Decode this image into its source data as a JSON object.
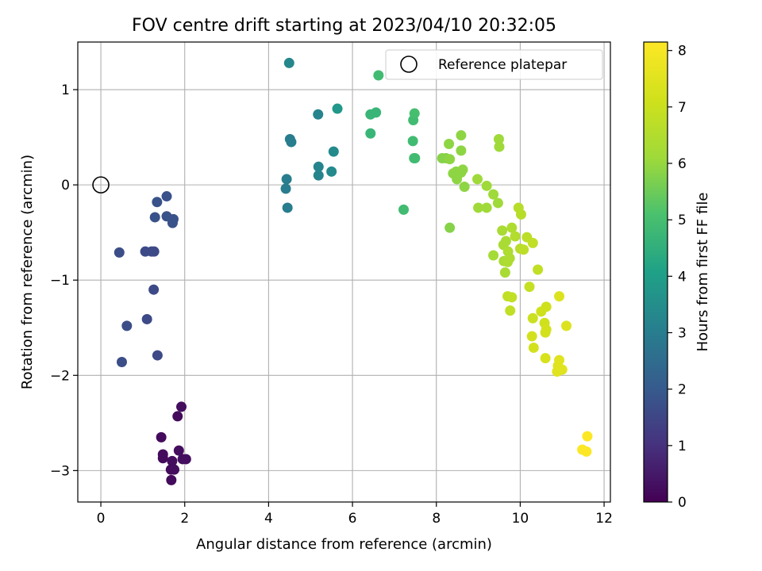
{
  "chart_data": {
    "type": "scatter",
    "title": "FOV centre drift starting at 2023/04/10 20:32:05",
    "xlabel": "Angular distance from reference (arcmin)",
    "ylabel": "Rotation from reference (arcmin)",
    "xlim": [
      -0.55,
      12.15
    ],
    "ylim": [
      -3.33,
      1.5
    ],
    "xticks": [
      0,
      2,
      4,
      6,
      8,
      10,
      12
    ],
    "yticks": [
      -3,
      -2,
      -1,
      0,
      1
    ],
    "xtick_labels": [
      "0",
      "2",
      "4",
      "6",
      "8",
      "10",
      "12"
    ],
    "ytick_labels": [
      "−3",
      "−2",
      "−1",
      "0",
      "1"
    ],
    "grid": true,
    "colormap": "viridis",
    "colorbar": {
      "label": "Hours from first FF file",
      "range": [
        0,
        8.15
      ],
      "ticks": [
        0,
        1,
        2,
        3,
        4,
        5,
        6,
        7,
        8
      ],
      "tick_labels": [
        "0",
        "1",
        "2",
        "3",
        "4",
        "5",
        "6",
        "7",
        "8"
      ]
    },
    "legend": {
      "position": "top-right",
      "entries": [
        "Reference platepar"
      ]
    },
    "reference_point": {
      "x": 0,
      "y": 0
    },
    "series": [
      {
        "x": 1.44,
        "y": -2.65,
        "c": 0.2
      },
      {
        "x": 1.83,
        "y": -2.43,
        "c": 0.2
      },
      {
        "x": 1.92,
        "y": -2.33,
        "c": 0.25
      },
      {
        "x": 1.48,
        "y": -2.83,
        "c": 0.2
      },
      {
        "x": 1.48,
        "y": -2.87,
        "c": 0.2
      },
      {
        "x": 1.7,
        "y": -2.9,
        "c": 0.25
      },
      {
        "x": 1.86,
        "y": -2.79,
        "c": 0.25
      },
      {
        "x": 1.95,
        "y": -2.88,
        "c": 0.3
      },
      {
        "x": 2.03,
        "y": -2.88,
        "c": 0.3
      },
      {
        "x": 1.67,
        "y": -2.99,
        "c": 0.2
      },
      {
        "x": 1.75,
        "y": -2.99,
        "c": 0.25
      },
      {
        "x": 1.68,
        "y": -3.1,
        "c": 0.2
      },
      {
        "x": 0.44,
        "y": -0.71,
        "c": 1.7
      },
      {
        "x": 0.5,
        "y": -1.86,
        "c": 1.7
      },
      {
        "x": 0.62,
        "y": -1.48,
        "c": 1.7
      },
      {
        "x": 1.06,
        "y": -0.7,
        "c": 1.6
      },
      {
        "x": 1.1,
        "y": -1.41,
        "c": 1.6
      },
      {
        "x": 1.21,
        "y": -0.7,
        "c": 1.6
      },
      {
        "x": 1.27,
        "y": -0.7,
        "c": 1.6
      },
      {
        "x": 1.26,
        "y": -1.1,
        "c": 1.6
      },
      {
        "x": 1.35,
        "y": -1.79,
        "c": 1.6
      },
      {
        "x": 1.34,
        "y": -0.18,
        "c": 1.8
      },
      {
        "x": 1.29,
        "y": -0.34,
        "c": 1.8
      },
      {
        "x": 1.57,
        "y": -0.12,
        "c": 1.8
      },
      {
        "x": 1.57,
        "y": -0.33,
        "c": 1.8
      },
      {
        "x": 1.73,
        "y": -0.36,
        "c": 1.8
      },
      {
        "x": 1.71,
        "y": -0.4,
        "c": 1.8
      },
      {
        "x": 4.49,
        "y": 1.28,
        "c": 3.3
      },
      {
        "x": 4.51,
        "y": 0.48,
        "c": 3.0
      },
      {
        "x": 4.54,
        "y": 0.45,
        "c": 3.0
      },
      {
        "x": 4.43,
        "y": 0.06,
        "c": 3.0
      },
      {
        "x": 4.41,
        "y": -0.04,
        "c": 3.0
      },
      {
        "x": 4.45,
        "y": -0.24,
        "c": 3.0
      },
      {
        "x": 5.18,
        "y": 0.74,
        "c": 3.2
      },
      {
        "x": 5.19,
        "y": 0.19,
        "c": 3.2
      },
      {
        "x": 5.19,
        "y": 0.1,
        "c": 3.2
      },
      {
        "x": 5.5,
        "y": 0.14,
        "c": 3.4
      },
      {
        "x": 5.55,
        "y": 0.35,
        "c": 3.4
      },
      {
        "x": 5.64,
        "y": 0.8,
        "c": 3.8
      },
      {
        "x": 6.43,
        "y": 0.74,
        "c": 4.7
      },
      {
        "x": 6.56,
        "y": 0.76,
        "c": 4.7
      },
      {
        "x": 6.43,
        "y": 0.54,
        "c": 4.7
      },
      {
        "x": 6.62,
        "y": 1.15,
        "c": 4.9
      },
      {
        "x": 7.22,
        "y": -0.26,
        "c": 4.9
      },
      {
        "x": 7.45,
        "y": 0.68,
        "c": 4.9
      },
      {
        "x": 7.48,
        "y": 0.75,
        "c": 5.0
      },
      {
        "x": 7.44,
        "y": 0.46,
        "c": 4.9
      },
      {
        "x": 7.47,
        "y": 0.28,
        "c": 4.9
      },
      {
        "x": 7.49,
        "y": 0.28,
        "c": 4.9
      },
      {
        "x": 8.14,
        "y": 0.28,
        "c": 5.8
      },
      {
        "x": 8.23,
        "y": 0.28,
        "c": 5.8
      },
      {
        "x": 8.3,
        "y": 0.43,
        "c": 5.9
      },
      {
        "x": 8.32,
        "y": 0.27,
        "c": 5.9
      },
      {
        "x": 8.59,
        "y": 0.52,
        "c": 5.9
      },
      {
        "x": 8.4,
        "y": 0.12,
        "c": 5.9
      },
      {
        "x": 8.47,
        "y": 0.14,
        "c": 5.9
      },
      {
        "x": 8.49,
        "y": 0.06,
        "c": 5.9
      },
      {
        "x": 8.59,
        "y": 0.13,
        "c": 5.9
      },
      {
        "x": 8.63,
        "y": 0.16,
        "c": 5.9
      },
      {
        "x": 8.59,
        "y": 0.36,
        "c": 5.9
      },
      {
        "x": 8.67,
        "y": -0.02,
        "c": 5.9
      },
      {
        "x": 8.32,
        "y": -0.45,
        "c": 5.8
      },
      {
        "x": 8.98,
        "y": 0.06,
        "c": 6.1
      },
      {
        "x": 9.0,
        "y": -0.24,
        "c": 6.1
      },
      {
        "x": 9.2,
        "y": -0.24,
        "c": 6.1
      },
      {
        "x": 9.2,
        "y": -0.01,
        "c": 6.1
      },
      {
        "x": 9.36,
        "y": -0.1,
        "c": 6.1
      },
      {
        "x": 9.47,
        "y": -0.19,
        "c": 6.1
      },
      {
        "x": 9.49,
        "y": 0.48,
        "c": 6.1
      },
      {
        "x": 9.5,
        "y": 0.4,
        "c": 6.1
      },
      {
        "x": 9.36,
        "y": -0.74,
        "c": 6.2
      },
      {
        "x": 9.57,
        "y": -0.48,
        "c": 6.3
      },
      {
        "x": 9.6,
        "y": -0.63,
        "c": 6.3
      },
      {
        "x": 9.66,
        "y": -0.59,
        "c": 6.3
      },
      {
        "x": 9.61,
        "y": -0.8,
        "c": 6.3
      },
      {
        "x": 9.64,
        "y": -0.92,
        "c": 6.3
      },
      {
        "x": 9.7,
        "y": -0.81,
        "c": 6.4
      },
      {
        "x": 9.71,
        "y": -0.7,
        "c": 6.4
      },
      {
        "x": 9.75,
        "y": -0.77,
        "c": 6.4
      },
      {
        "x": 9.8,
        "y": -0.45,
        "c": 6.4
      },
      {
        "x": 9.88,
        "y": -0.54,
        "c": 6.5
      },
      {
        "x": 9.96,
        "y": -0.24,
        "c": 6.6
      },
      {
        "x": 10.02,
        "y": -0.31,
        "c": 6.6
      },
      {
        "x": 10.0,
        "y": -0.67,
        "c": 6.6
      },
      {
        "x": 10.08,
        "y": -0.68,
        "c": 6.7
      },
      {
        "x": 10.16,
        "y": -0.55,
        "c": 6.7
      },
      {
        "x": 10.3,
        "y": -0.61,
        "c": 6.8
      },
      {
        "x": 10.42,
        "y": -0.89,
        "c": 6.8
      },
      {
        "x": 9.7,
        "y": -1.17,
        "c": 6.8
      },
      {
        "x": 9.8,
        "y": -1.18,
        "c": 6.8
      },
      {
        "x": 9.76,
        "y": -1.32,
        "c": 6.8
      },
      {
        "x": 10.22,
        "y": -1.07,
        "c": 6.9
      },
      {
        "x": 10.3,
        "y": -1.4,
        "c": 7.0
      },
      {
        "x": 10.5,
        "y": -1.33,
        "c": 7.1
      },
      {
        "x": 10.62,
        "y": -1.28,
        "c": 7.1
      },
      {
        "x": 10.58,
        "y": -1.45,
        "c": 7.1
      },
      {
        "x": 10.62,
        "y": -1.52,
        "c": 7.2
      },
      {
        "x": 10.6,
        "y": -1.55,
        "c": 7.2
      },
      {
        "x": 10.28,
        "y": -1.59,
        "c": 7.2
      },
      {
        "x": 10.32,
        "y": -1.71,
        "c": 7.2
      },
      {
        "x": 10.6,
        "y": -1.82,
        "c": 7.3
      },
      {
        "x": 10.93,
        "y": -1.17,
        "c": 7.4
      },
      {
        "x": 11.1,
        "y": -1.48,
        "c": 7.4
      },
      {
        "x": 10.93,
        "y": -1.84,
        "c": 7.5
      },
      {
        "x": 10.9,
        "y": -1.9,
        "c": 7.5
      },
      {
        "x": 10.88,
        "y": -1.96,
        "c": 7.5
      },
      {
        "x": 11.0,
        "y": -1.94,
        "c": 7.5
      },
      {
        "x": 11.6,
        "y": -2.64,
        "c": 8.1
      },
      {
        "x": 11.48,
        "y": -2.78,
        "c": 8.1
      },
      {
        "x": 11.58,
        "y": -2.8,
        "c": 8.1
      }
    ]
  }
}
